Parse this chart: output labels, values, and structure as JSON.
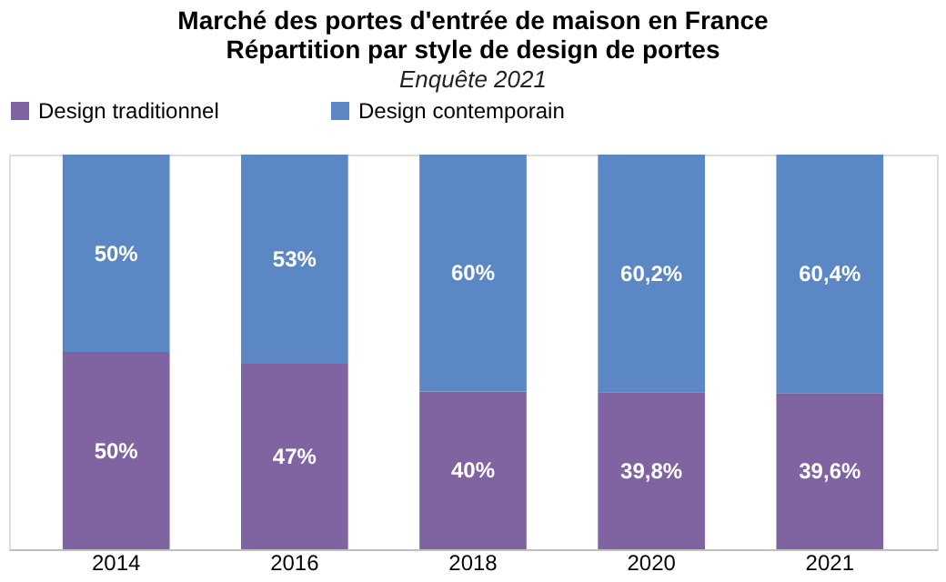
{
  "chart_data": {
    "type": "bar",
    "stacked": true,
    "title": [
      "Marché des portes d'entrée de maison en France",
      "Répartition par style de design de portes"
    ],
    "subtitle": "Enquête 2021",
    "categories": [
      "2014",
      "2016",
      "2018",
      "2020",
      "2021"
    ],
    "series": [
      {
        "name": "Design traditionnel",
        "color": "#8064a2",
        "values": [
          50,
          47,
          40,
          39.8,
          39.6
        ],
        "value_labels": [
          "50%",
          "47%",
          "40%",
          "39,8%",
          "39,6%"
        ]
      },
      {
        "name": "Design contemporain",
        "color": "#5b87c5",
        "values": [
          50,
          53,
          60,
          60.2,
          60.4
        ],
        "value_labels": [
          "50%",
          "53%",
          "60%",
          "60,2%",
          "60,4%"
        ]
      }
    ],
    "legend": "top",
    "grid": false
  }
}
